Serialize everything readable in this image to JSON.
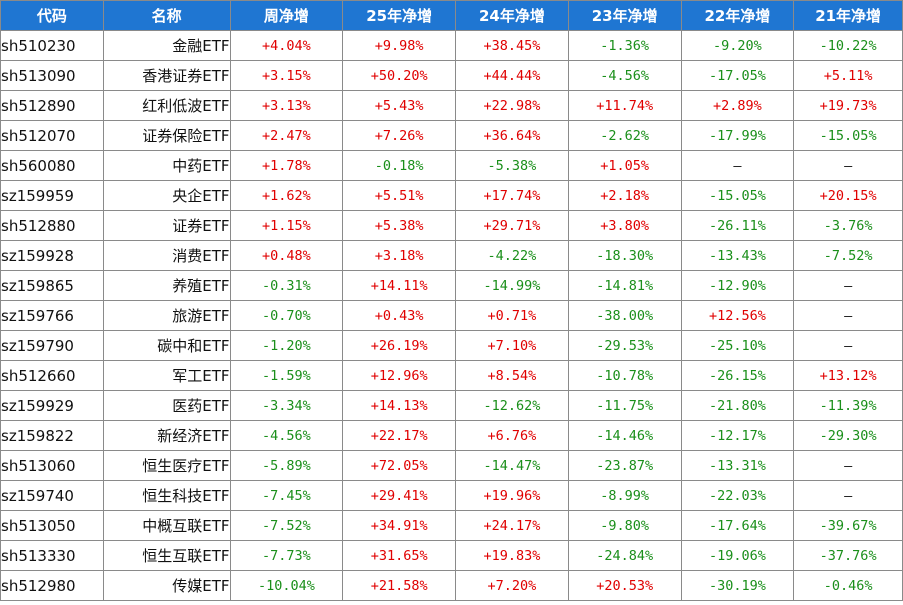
{
  "headers": [
    "代码",
    "名称",
    "周净增",
    "25年净增",
    "24年净增",
    "23年净增",
    "22年净增",
    "21年净增"
  ],
  "colors": {
    "header_bg": "#1f76d2",
    "positive": "#e00000",
    "negative": "#1a8f1a"
  },
  "rows": [
    {
      "code": "sh510230",
      "name": "金融ETF",
      "week": "+4.04%",
      "y25": "+9.98%",
      "y24": "+38.45%",
      "y23": "-1.36%",
      "y22": "-9.20%",
      "y21": "-10.22%"
    },
    {
      "code": "sh513090",
      "name": "香港证券ETF",
      "week": "+3.15%",
      "y25": "+50.20%",
      "y24": "+44.44%",
      "y23": "-4.56%",
      "y22": "-17.05%",
      "y21": "+5.11%"
    },
    {
      "code": "sh512890",
      "name": "红利低波ETF",
      "week": "+3.13%",
      "y25": "+5.43%",
      "y24": "+22.98%",
      "y23": "+11.74%",
      "y22": "+2.89%",
      "y21": "+19.73%"
    },
    {
      "code": "sh512070",
      "name": "证券保险ETF",
      "week": "+2.47%",
      "y25": "+7.26%",
      "y24": "+36.64%",
      "y23": "-2.62%",
      "y22": "-17.99%",
      "y21": "-15.05%"
    },
    {
      "code": "sh560080",
      "name": "中药ETF",
      "week": "+1.78%",
      "y25": "-0.18%",
      "y24": "-5.38%",
      "y23": "+1.05%",
      "y22": "—",
      "y21": "—"
    },
    {
      "code": "sz159959",
      "name": "央企ETF",
      "week": "+1.62%",
      "y25": "+5.51%",
      "y24": "+17.74%",
      "y23": "+2.18%",
      "y22": "-15.05%",
      "y21": "+20.15%"
    },
    {
      "code": "sh512880",
      "name": "证券ETF",
      "week": "+1.15%",
      "y25": "+5.38%",
      "y24": "+29.71%",
      "y23": "+3.80%",
      "y22": "-26.11%",
      "y21": "-3.76%"
    },
    {
      "code": "sz159928",
      "name": "消费ETF",
      "week": "+0.48%",
      "y25": "+3.18%",
      "y24": "-4.22%",
      "y23": "-18.30%",
      "y22": "-13.43%",
      "y21": "-7.52%"
    },
    {
      "code": "sz159865",
      "name": "养殖ETF",
      "week": "-0.31%",
      "y25": "+14.11%",
      "y24": "-14.99%",
      "y23": "-14.81%",
      "y22": "-12.90%",
      "y21": "—"
    },
    {
      "code": "sz159766",
      "name": "旅游ETF",
      "week": "-0.70%",
      "y25": "+0.43%",
      "y24": "+0.71%",
      "y23": "-38.00%",
      "y22": "+12.56%",
      "y21": "—"
    },
    {
      "code": "sz159790",
      "name": "碳中和ETF",
      "week": "-1.20%",
      "y25": "+26.19%",
      "y24": "+7.10%",
      "y23": "-29.53%",
      "y22": "-25.10%",
      "y21": "—"
    },
    {
      "code": "sh512660",
      "name": "军工ETF",
      "week": "-1.59%",
      "y25": "+12.96%",
      "y24": "+8.54%",
      "y23": "-10.78%",
      "y22": "-26.15%",
      "y21": "+13.12%"
    },
    {
      "code": "sz159929",
      "name": "医药ETF",
      "week": "-3.34%",
      "y25": "+14.13%",
      "y24": "-12.62%",
      "y23": "-11.75%",
      "y22": "-21.80%",
      "y21": "-11.39%"
    },
    {
      "code": "sz159822",
      "name": "新经济ETF",
      "week": "-4.56%",
      "y25": "+22.17%",
      "y24": "+6.76%",
      "y23": "-14.46%",
      "y22": "-12.17%",
      "y21": "-29.30%"
    },
    {
      "code": "sh513060",
      "name": "恒生医疗ETF",
      "week": "-5.89%",
      "y25": "+72.05%",
      "y24": "-14.47%",
      "y23": "-23.87%",
      "y22": "-13.31%",
      "y21": "—"
    },
    {
      "code": "sz159740",
      "name": "恒生科技ETF",
      "week": "-7.45%",
      "y25": "+29.41%",
      "y24": "+19.96%",
      "y23": "-8.99%",
      "y22": "-22.03%",
      "y21": "—"
    },
    {
      "code": "sh513050",
      "name": "中概互联ETF",
      "week": "-7.52%",
      "y25": "+34.91%",
      "y24": "+24.17%",
      "y23": "-9.80%",
      "y22": "-17.64%",
      "y21": "-39.67%"
    },
    {
      "code": "sh513330",
      "name": "恒生互联ETF",
      "week": "-7.73%",
      "y25": "+31.65%",
      "y24": "+19.83%",
      "y23": "-24.84%",
      "y22": "-19.06%",
      "y21": "-37.76%"
    },
    {
      "code": "sh512980",
      "name": "传媒ETF",
      "week": "-10.04%",
      "y25": "+21.58%",
      "y24": "+7.20%",
      "y23": "+20.53%",
      "y22": "-30.19%",
      "y21": "-0.46%"
    }
  ]
}
